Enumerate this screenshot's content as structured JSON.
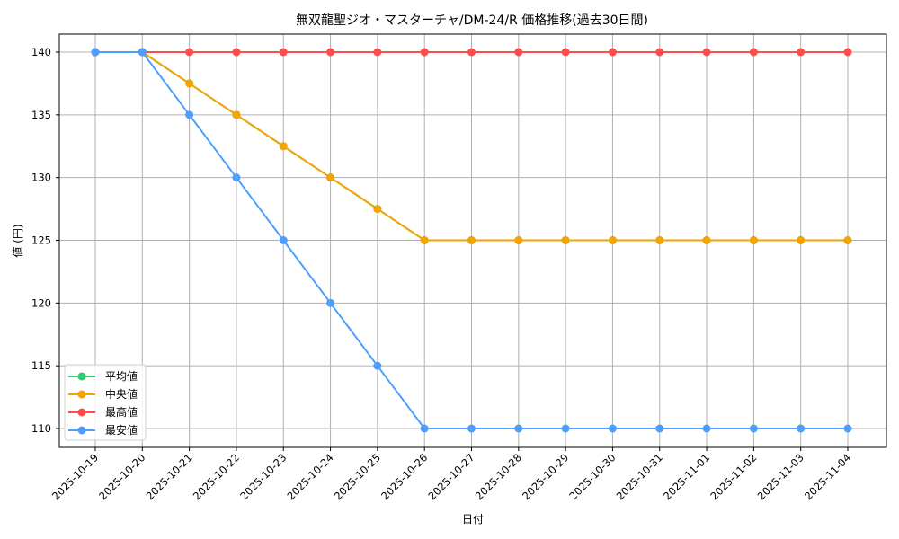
{
  "chart_data": {
    "type": "line",
    "title": "無双龍聖ジオ・マスターチャ/DM-24/R 価格推移(過去30日間)",
    "xlabel": "日付",
    "ylabel": "値 (円)",
    "categories": [
      "2025-10-19",
      "2025-10-20",
      "2025-10-21",
      "2025-10-22",
      "2025-10-23",
      "2025-10-24",
      "2025-10-25",
      "2025-10-26",
      "2025-10-27",
      "2025-10-28",
      "2025-10-29",
      "2025-10-30",
      "2025-10-31",
      "2025-11-01",
      "2025-11-02",
      "2025-11-03",
      "2025-11-04"
    ],
    "yticks": [
      110,
      115,
      120,
      125,
      130,
      135,
      140
    ],
    "ylim": [
      108.6,
      141.4
    ],
    "grid": true,
    "legend_position": "lower left",
    "series": [
      {
        "name": "平均値",
        "color": "#2ecc71",
        "values": [
          140,
          140,
          137.5,
          135,
          132.5,
          130,
          127.5,
          125,
          125,
          125,
          125,
          125,
          125,
          125,
          125,
          125,
          125
        ]
      },
      {
        "name": "中央値",
        "color": "#f5a300",
        "values": [
          140,
          140,
          137.5,
          135,
          132.5,
          130,
          127.5,
          125,
          125,
          125,
          125,
          125,
          125,
          125,
          125,
          125,
          125
        ]
      },
      {
        "name": "最高値",
        "color": "#ff4d4d",
        "values": [
          140,
          140,
          140,
          140,
          140,
          140,
          140,
          140,
          140,
          140,
          140,
          140,
          140,
          140,
          140,
          140,
          140
        ]
      },
      {
        "name": "最安値",
        "color": "#4d9fff",
        "values": [
          140,
          140,
          135,
          130,
          125,
          120,
          115,
          110,
          110,
          110,
          110,
          110,
          110,
          110,
          110,
          110,
          110
        ]
      }
    ]
  }
}
